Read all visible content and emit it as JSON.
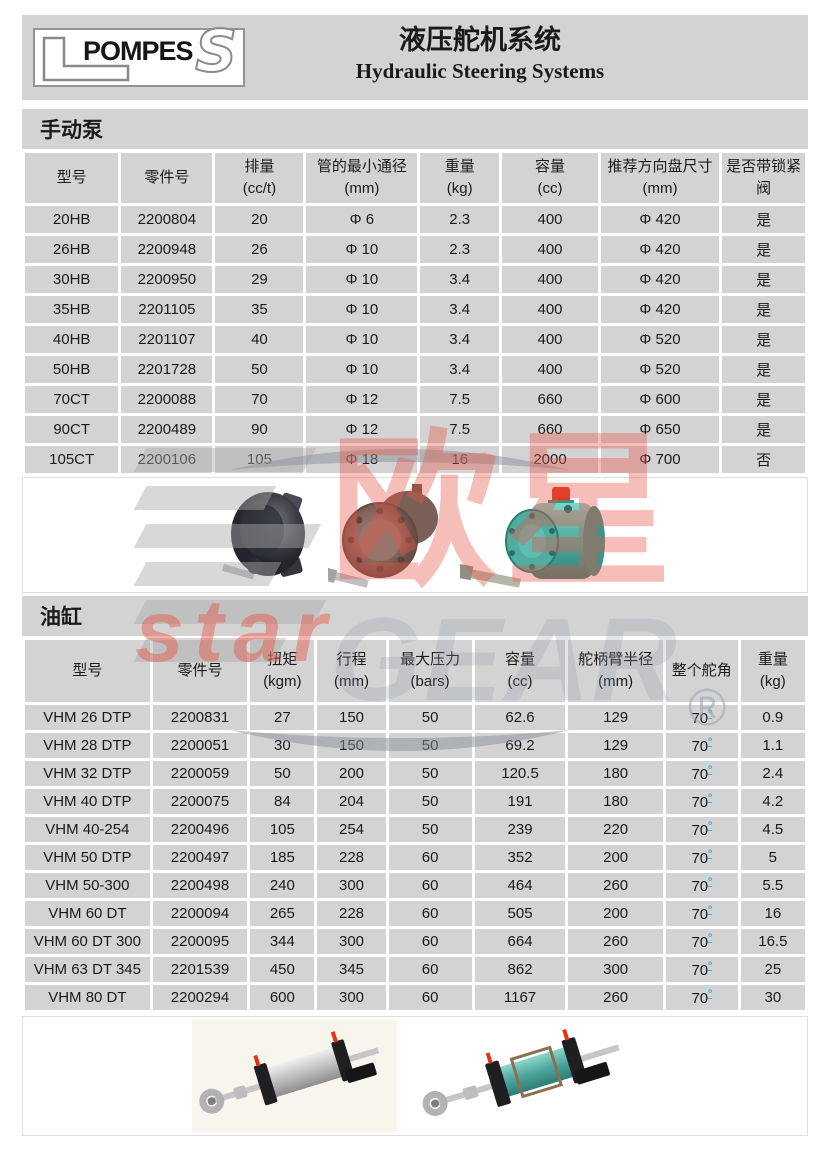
{
  "colors": {
    "accent_blue": "#2fb3e8",
    "panel_gray": "#d3d3d3",
    "watermark_red": "#e95646"
  },
  "header": {
    "logo_l": "L",
    "logo_text": "POMPES",
    "logo_s": "S",
    "title_zh": "液压舵机系统",
    "title_en": "Hydraulic Steering Systems"
  },
  "section1": {
    "title": "手动泵",
    "table": {
      "columns": [
        "型号",
        "零件号",
        "排量\n(cc/t)",
        "管的最小通径\n(mm)",
        "重量\n(kg)",
        "容量\n(cc)",
        "推荐方向盘尺寸(mm)",
        "是否带锁紧阀"
      ],
      "rows": [
        [
          "20HB",
          "2200804",
          "20",
          "Φ 6",
          "2.3",
          "400",
          "Φ 420",
          "是"
        ],
        [
          "26HB",
          "2200948",
          "26",
          "Φ 10",
          "2.3",
          "400",
          "Φ 420",
          "是"
        ],
        [
          "30HB",
          "2200950",
          "29",
          "Φ 10",
          "3.4",
          "400",
          "Φ 420",
          "是"
        ],
        [
          "35HB",
          "2201105",
          "35",
          "Φ 10",
          "3.4",
          "400",
          "Φ 420",
          "是"
        ],
        [
          "40HB",
          "2201107",
          "40",
          "Φ 10",
          "3.4",
          "400",
          "Φ 520",
          "是"
        ],
        [
          "50HB",
          "2201728",
          "50",
          "Φ 10",
          "3.4",
          "400",
          "Φ 520",
          "是"
        ],
        [
          "70CT",
          "2200088",
          "70",
          "Φ 12",
          "7.5",
          "660",
          "Φ 600",
          "是"
        ],
        [
          "90CT",
          "2200489",
          "90",
          "Φ 12",
          "7.5",
          "660",
          "Φ 650",
          "是"
        ],
        [
          "105CT",
          "2200106",
          "105",
          "Φ 18",
          "16",
          "2000",
          "Φ 700",
          "否"
        ]
      ]
    },
    "images": [
      "helm-pump-dark",
      "helm-pump-bronze",
      "helm-pump-teal"
    ]
  },
  "section2": {
    "title": "油缸",
    "table": {
      "columns": [
        "型号",
        "零件号",
        "扭矩\n(kgm)",
        "行程\n(mm)",
        "最大压力\n(bars)",
        "容量\n(cc)",
        "舵柄臂半径\n(mm)",
        "整个舵角",
        "重量\n(kg)"
      ],
      "rows": [
        [
          "VHM 26 DTP",
          "2200831",
          "27",
          "150",
          "50",
          "62.6",
          "129",
          "70º",
          "0.9"
        ],
        [
          "VHM 28 DTP",
          "2200051",
          "30",
          "150",
          "50",
          "69.2",
          "129",
          "70º",
          "1.1"
        ],
        [
          "VHM 32 DTP",
          "2200059",
          "50",
          "200",
          "50",
          "120.5",
          "180",
          "70º",
          "2.4"
        ],
        [
          "VHM 40 DTP",
          "2200075",
          "84",
          "204",
          "50",
          "191",
          "180",
          "70º",
          "4.2"
        ],
        [
          "VHM 40-254",
          "2200496",
          "105",
          "254",
          "50",
          "239",
          "220",
          "70º",
          "4.5"
        ],
        [
          "VHM 50 DTP",
          "2200497",
          "185",
          "228",
          "60",
          "352",
          "200",
          "70º",
          "5"
        ],
        [
          "VHM 50-300",
          "2200498",
          "240",
          "300",
          "60",
          "464",
          "260",
          "70º",
          "5.5"
        ],
        [
          "VHM 60 DT",
          "2200094",
          "265",
          "228",
          "60",
          "505",
          "200",
          "70º",
          "16"
        ],
        [
          "VHM 60 DT 300",
          "2200095",
          "344",
          "300",
          "60",
          "664",
          "260",
          "70º",
          "16.5"
        ],
        [
          "VHM 63 DT 345",
          "2201539",
          "450",
          "345",
          "60",
          "862",
          "300",
          "70º",
          "25"
        ],
        [
          "VHM 80 DT",
          "2200294",
          "600",
          "300",
          "60",
          "1167",
          "260",
          "70º",
          "30"
        ]
      ]
    },
    "images": [
      "steering-cylinder-silver",
      "steering-cylinder-teal"
    ]
  },
  "watermark": {
    "zh": "欧星",
    "en": "star",
    "ghost": "GEAR",
    "reg": "®"
  }
}
